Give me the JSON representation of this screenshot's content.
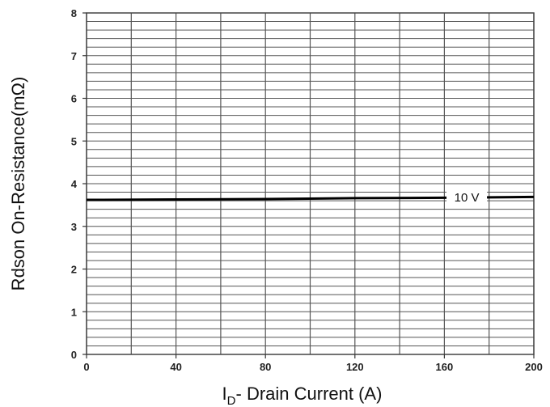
{
  "chart_data": {
    "type": "line",
    "xlabel_main": "I",
    "xlabel_sub": "D",
    "xlabel_rest": "- Drain Current (A)",
    "ylabel": "Rdson On-Resistance(mΩ)",
    "xlim": [
      0,
      200
    ],
    "ylim": [
      0,
      8
    ],
    "x_ticks": [
      "0",
      "40",
      "80",
      "120",
      "160",
      "200"
    ],
    "y_ticks": [
      "0",
      "1",
      "2",
      "3",
      "4",
      "5",
      "6",
      "7",
      "8"
    ],
    "grid": true,
    "series": [
      {
        "name": "10 V",
        "x": [
          0,
          40,
          80,
          120,
          160,
          200
        ],
        "y": [
          3.62,
          3.63,
          3.64,
          3.66,
          3.67,
          3.69
        ]
      }
    ]
  }
}
